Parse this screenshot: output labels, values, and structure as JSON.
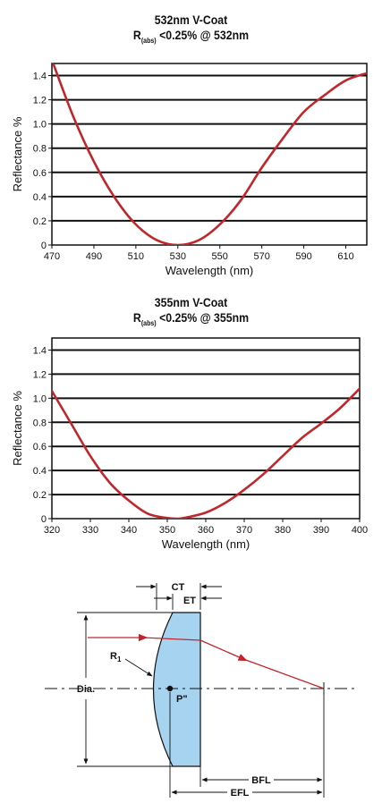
{
  "chart_data": [
    {
      "type": "line",
      "title": "532nm V-Coat",
      "subtitle": {
        "prefix": "R",
        "sub": "(abs)",
        "rest": " <0.25% @ 532nm"
      },
      "xlabel": "Wavelength (nm)",
      "ylabel": "Reflectance %",
      "xlim": [
        470,
        620
      ],
      "ylim": [
        0,
        1.5
      ],
      "xticks": [
        "470",
        "490",
        "510",
        "530",
        "550",
        "570",
        "590",
        "610"
      ],
      "yticks": [
        "0",
        "0.2",
        "0.4",
        "0.6",
        "0.8",
        "1.0",
        "1.2",
        "1.4"
      ],
      "grid": "horizontal",
      "series": [
        {
          "color": "#c0272d",
          "x": [
            470,
            480,
            490,
            500,
            510,
            520,
            530,
            540,
            550,
            560,
            570,
            580,
            590,
            600,
            610,
            620
          ],
          "y": [
            1.53,
            1.07,
            0.69,
            0.39,
            0.17,
            0.04,
            0.0,
            0.04,
            0.17,
            0.37,
            0.64,
            0.88,
            1.1,
            1.24,
            1.36,
            1.42
          ]
        }
      ]
    },
    {
      "type": "line",
      "title": "355nm V-Coat",
      "subtitle": {
        "prefix": "R",
        "sub": "(abs)",
        "rest": " <0.25% @ 355nm"
      },
      "xlabel": "Wavelength (nm)",
      "ylabel": "Reflectance %",
      "xlim": [
        320,
        400
      ],
      "ylim": [
        0,
        1.5
      ],
      "xticks": [
        "320",
        "330",
        "340",
        "350",
        "360",
        "370",
        "380",
        "390",
        "400"
      ],
      "yticks": [
        "0",
        "0.2",
        "0.4",
        "0.6",
        "0.8",
        "1.0",
        "1.2",
        "1.4"
      ],
      "grid": "horizontal",
      "series": [
        {
          "color": "#c0272d",
          "x": [
            320,
            325,
            330,
            335,
            340,
            345,
            350,
            353,
            355,
            360,
            365,
            370,
            375,
            380,
            385,
            390,
            395,
            400
          ],
          "y": [
            1.06,
            0.79,
            0.52,
            0.3,
            0.15,
            0.04,
            0.005,
            0.0,
            0.01,
            0.05,
            0.13,
            0.24,
            0.37,
            0.52,
            0.67,
            0.79,
            0.92,
            1.08
          ]
        }
      ]
    }
  ],
  "diagram": {
    "labels": {
      "ct": "CT",
      "et": "ET",
      "r1": "R",
      "r1_sub": "1",
      "dia": "Dia.",
      "principal_point": "P\"",
      "bfl": "BFL",
      "efl": "EFL"
    },
    "colors": {
      "lens_fill": "#a6d3ef",
      "ray": "#c0272d"
    }
  }
}
